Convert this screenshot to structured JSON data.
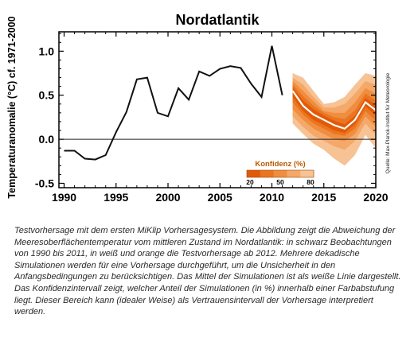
{
  "chart_data": {
    "type": "line",
    "title": "Nordatlantik",
    "ylabel": "Temperaturanomalie (°C) cf. 1971-2000",
    "xlabel": "",
    "xlim": [
      1989.5,
      2020
    ],
    "ylim": [
      -0.55,
      1.22
    ],
    "x_ticks": [
      "1990",
      "1995",
      "2000",
      "2005",
      "2010",
      "2015",
      "2020"
    ],
    "y_ticks": [
      "-0.5",
      "0.0",
      "0.5",
      "1.0"
    ],
    "zero_line": true,
    "grid": false,
    "observations": {
      "color": "#111111",
      "x": [
        1990,
        1991,
        1992,
        1993,
        1994,
        1995,
        1996,
        1997,
        1998,
        1999,
        2000,
        2001,
        2002,
        2003,
        2004,
        2005,
        2006,
        2007,
        2008,
        2009,
        2010,
        2011
      ],
      "y": [
        -0.13,
        -0.13,
        -0.22,
        -0.23,
        -0.18,
        0.08,
        0.31,
        0.68,
        0.7,
        0.3,
        0.26,
        0.58,
        0.45,
        0.77,
        0.72,
        0.8,
        0.83,
        0.81,
        0.63,
        0.48,
        1.06,
        0.5
      ]
    },
    "forecast": {
      "x": [
        2012,
        2013,
        2014,
        2015,
        2016,
        2017,
        2018,
        2019,
        2020
      ],
      "mean": [
        0.55,
        0.38,
        0.28,
        0.22,
        0.16,
        0.12,
        0.22,
        0.42,
        0.33
      ],
      "line_color": "#ffffff",
      "bands": [
        {
          "conf": 80,
          "color": "#f7c394",
          "lo": [
            0.18,
            0.06,
            -0.05,
            -0.12,
            -0.22,
            -0.3,
            -0.18,
            0.05,
            -0.1
          ],
          "hi": [
            0.75,
            0.7,
            0.55,
            0.4,
            0.42,
            0.48,
            0.62,
            0.75,
            0.72
          ]
        },
        {
          "conf": 65,
          "color": "#f4a86a",
          "lo": [
            0.26,
            0.14,
            0.04,
            -0.02,
            -0.08,
            -0.12,
            -0.02,
            0.18,
            0.05
          ],
          "hi": [
            0.7,
            0.62,
            0.48,
            0.36,
            0.36,
            0.4,
            0.52,
            0.66,
            0.62
          ]
        },
        {
          "conf": 50,
          "color": "#f08e40",
          "lo": [
            0.34,
            0.22,
            0.12,
            0.06,
            0.0,
            -0.02,
            0.06,
            0.26,
            0.14
          ],
          "hi": [
            0.66,
            0.55,
            0.43,
            0.32,
            0.3,
            0.3,
            0.42,
            0.58,
            0.52
          ]
        },
        {
          "conf": 35,
          "color": "#eb7520",
          "lo": [
            0.42,
            0.28,
            0.18,
            0.12,
            0.06,
            0.04,
            0.12,
            0.32,
            0.21
          ],
          "hi": [
            0.62,
            0.49,
            0.38,
            0.3,
            0.25,
            0.23,
            0.33,
            0.52,
            0.44
          ]
        },
        {
          "conf": 20,
          "color": "#e15a07",
          "lo": [
            0.48,
            0.32,
            0.22,
            0.16,
            0.1,
            0.07,
            0.17,
            0.37,
            0.27
          ],
          "hi": [
            0.59,
            0.44,
            0.34,
            0.27,
            0.21,
            0.17,
            0.27,
            0.47,
            0.39
          ]
        }
      ]
    },
    "legend": {
      "title": "Konfidenz (%)",
      "ticks": [
        "20",
        "50",
        "80"
      ],
      "colors": [
        "#e15a07",
        "#eb7520",
        "#f08e40",
        "#f4a86a",
        "#f7c394"
      ]
    },
    "source": "Quelle: Max-Planck-Institut für Meteorologie"
  },
  "caption": "Testvorhersage mit dem ersten MiKlip Vorhersagesystem. Die Abbildung zeigt die Abweichung der Meeresoberflächentemperatur vom mittleren Zustand im Nordatlantik: in schwarz Beobachtungen von 1990 bis 2011, in weiß und orange die Testvorhersage ab 2012. Mehrere dekadische Simulationen werden für eine Vorhersage durchgeführt, um die Unsicherheit in den Anfangsbedingungen zu berücksichtigen. Das Mittel der Simulationen ist als weiße Linie dargestellt. Das Konfidenzintervall zeigt, welcher Anteil der Simulationen (in %) innerhalb einer Farbabstufung liegt. Dieser Bereich kann (idealer Weise) als Vertrauensintervall der Vorhersage interpretiert werden."
}
